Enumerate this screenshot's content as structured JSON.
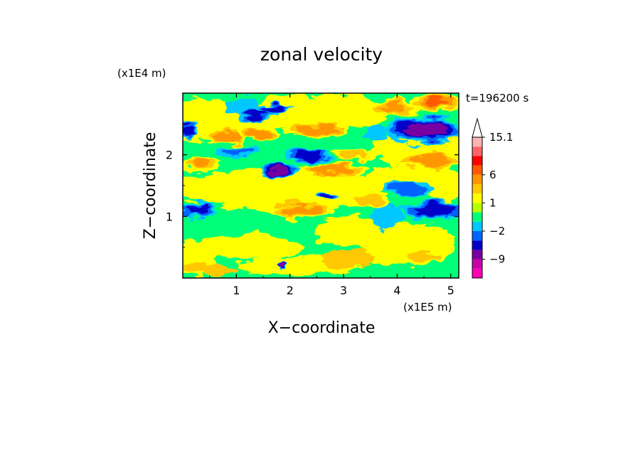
{
  "chart_data": {
    "type": "heatmap",
    "title": "zonal velocity",
    "xlabel": "X−coordinate",
    "ylabel": "Z−coordinate",
    "x_scale_label": "(x1E5 m)",
    "y_scale_label": "(x1E4 m)",
    "time_label": "t=196200 s",
    "xlim": [
      0,
      5.15
    ],
    "ylim": [
      0,
      3.0
    ],
    "x_ticks": [
      1,
      2,
      3,
      4,
      5
    ],
    "x_tick_labels": [
      "1",
      "2",
      "3",
      "4",
      "5"
    ],
    "y_ticks": [
      1,
      2
    ],
    "y_tick_labels": [
      "1",
      "2"
    ],
    "colorbar": {
      "levels": [
        -15,
        -12,
        -9,
        -6,
        -3,
        -2,
        -1,
        0,
        1,
        2,
        3,
        6,
        9,
        12,
        15.1
      ],
      "colors": [
        "#ff00b4",
        "#c800aa",
        "#7800a0",
        "#0000c8",
        "#0064ff",
        "#00c8ff",
        "#00ff78",
        "#b4ff00",
        "#ffff00",
        "#ffc800",
        "#ff9600",
        "#ff5a00",
        "#ff0000",
        "#ff6464",
        "#ffb4b4"
      ],
      "tick_values": [
        15.1,
        6,
        1,
        -2,
        -9
      ],
      "tick_labels": [
        "15.1",
        "6",
        "1",
        "−2",
        "−9"
      ],
      "extend": "max"
    },
    "blobs": [
      {
        "x": 0.85,
        "z": 2.3,
        "rx": 0.35,
        "rz": 0.1,
        "v": 4
      },
      {
        "x": 1.4,
        "z": 2.35,
        "rx": 0.3,
        "rz": 0.1,
        "v": 5
      },
      {
        "x": 1.35,
        "z": 2.65,
        "rx": 0.3,
        "rz": 0.08,
        "v": -5
      },
      {
        "x": 2.5,
        "z": 2.4,
        "rx": 0.5,
        "rz": 0.12,
        "v": 5
      },
      {
        "x": 2.35,
        "z": 2.0,
        "rx": 0.35,
        "rz": 0.1,
        "v": -6
      },
      {
        "x": 1.8,
        "z": 1.75,
        "rx": 0.3,
        "rz": 0.1,
        "v": -8
      },
      {
        "x": 2.8,
        "z": 1.75,
        "rx": 0.5,
        "rz": 0.1,
        "v": 4
      },
      {
        "x": 2.7,
        "z": 1.35,
        "rx": 0.15,
        "rz": 0.06,
        "v": -4
      },
      {
        "x": 2.2,
        "z": 1.1,
        "rx": 0.5,
        "rz": 0.12,
        "v": 4
      },
      {
        "x": 1.0,
        "z": 2.05,
        "rx": 0.3,
        "rz": 0.08,
        "v": -3
      },
      {
        "x": 4.55,
        "z": 2.4,
        "rx": 0.6,
        "rz": 0.18,
        "v": -9
      },
      {
        "x": 4.6,
        "z": 1.9,
        "rx": 0.5,
        "rz": 0.12,
        "v": 4
      },
      {
        "x": 4.7,
        "z": 1.1,
        "rx": 0.5,
        "rz": 0.12,
        "v": -6
      },
      {
        "x": 4.2,
        "z": 1.45,
        "rx": 0.4,
        "rz": 0.1,
        "v": -3
      },
      {
        "x": 4.75,
        "z": 2.85,
        "rx": 0.4,
        "rz": 0.12,
        "v": 6
      },
      {
        "x": 3.9,
        "z": 2.75,
        "rx": 0.4,
        "rz": 0.1,
        "v": 3
      },
      {
        "x": 0.3,
        "z": 1.85,
        "rx": 0.3,
        "rz": 0.1,
        "v": 3
      },
      {
        "x": 0.25,
        "z": 1.1,
        "rx": 0.3,
        "rz": 0.1,
        "v": -5
      },
      {
        "x": 0.1,
        "z": 2.4,
        "rx": 0.15,
        "rz": 0.1,
        "v": -5
      },
      {
        "x": 4.5,
        "z": 0.35,
        "rx": 0.3,
        "rz": 0.08,
        "v": 2
      },
      {
        "x": 1.85,
        "z": 0.18,
        "rx": 0.05,
        "rz": 0.05,
        "v": -7
      },
      {
        "x": 3.2,
        "z": 2.0,
        "rx": 0.3,
        "rz": 0.08,
        "v": 2
      },
      {
        "x": 1.7,
        "z": 2.75,
        "rx": 0.3,
        "rz": 0.06,
        "v": -4
      },
      {
        "x": 3.5,
        "z": 1.25,
        "rx": 0.3,
        "rz": 0.1,
        "v": 2
      }
    ]
  }
}
